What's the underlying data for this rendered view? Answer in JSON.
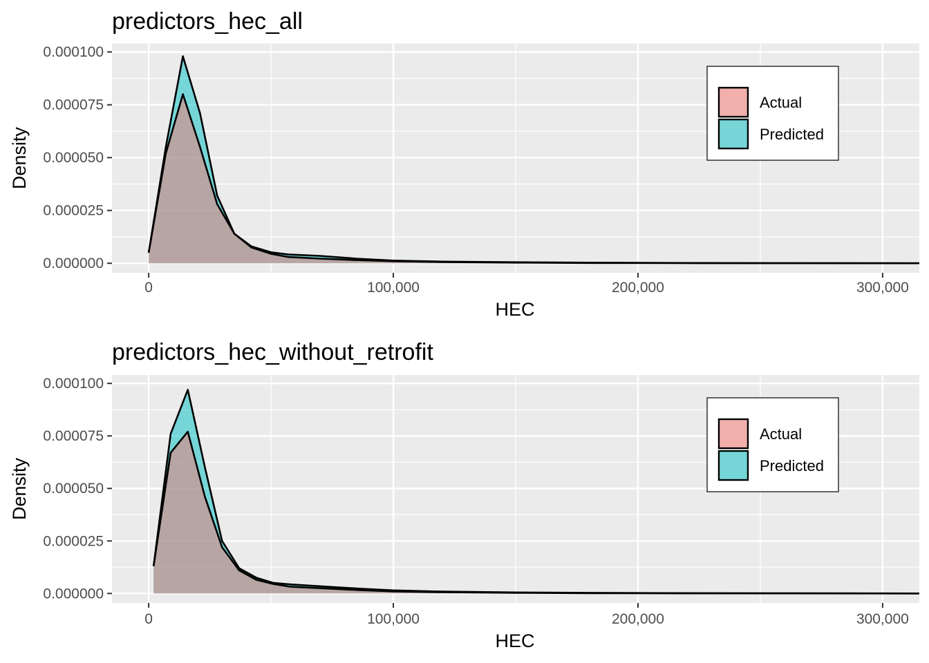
{
  "chart_data": [
    {
      "type": "area",
      "title": "predictors_hec_all",
      "xlabel": "HEC",
      "ylabel": "Density",
      "xlim": [
        -15000,
        315000
      ],
      "ylim": [
        -4.5e-06,
        0.000104
      ],
      "x_ticks": [
        0,
        100000,
        200000,
        300000
      ],
      "x_tick_labels": [
        "0",
        "100,000",
        "200,000",
        "300,000"
      ],
      "y_ticks": [
        0,
        2.5e-05,
        5e-05,
        7.5e-05,
        0.0001
      ],
      "y_tick_labels": [
        "0.000000",
        "0.000025",
        "0.000050",
        "0.000075",
        "0.000100"
      ],
      "grid": true,
      "legend": {
        "placement": "top-right",
        "items": [
          "Actual",
          "Predicted"
        ]
      },
      "series": [
        {
          "name": "Actual",
          "color": "#f8766d",
          "x": [
            0,
            7000,
            14000,
            21000,
            28000,
            35000,
            42000,
            50000,
            57000,
            70000,
            85000,
            100000,
            120000,
            150000,
            180000,
            220000,
            260000,
            300000,
            315000
          ],
          "values": [
            5e-06,
            5.2e-05,
            8e-05,
            5.5e-05,
            2.8e-05,
            1.4e-05,
            7.5e-06,
            4.5e-06,
            3e-06,
            2.2e-06,
            1.5e-06,
            1e-06,
            6e-07,
            3e-07,
            1.5e-07,
            8e-08,
            4e-08,
            2e-08,
            1e-08
          ]
        },
        {
          "name": "Predicted",
          "color": "#00bfc4",
          "x": [
            0,
            7000,
            14000,
            21000,
            28000,
            35000,
            42000,
            50000,
            57000,
            70000,
            85000,
            100000,
            120000,
            150000,
            180000,
            220000,
            260000,
            300000,
            315000
          ],
          "values": [
            5e-06,
            5.5e-05,
            9.8e-05,
            7.1e-05,
            3.2e-05,
            1.4e-05,
            8e-06,
            5.2e-06,
            4.2e-06,
            3.5e-06,
            2.2e-06,
            1.3e-06,
            8e-07,
            5e-07,
            3e-07,
            1.5e-07,
            8e-08,
            4e-08,
            2e-08
          ]
        }
      ]
    },
    {
      "type": "area",
      "title": "predictors_hec_without_retrofit",
      "xlabel": "HEC",
      "ylabel": "Density",
      "xlim": [
        -15000,
        315000
      ],
      "ylim": [
        -4.5e-06,
        0.000104
      ],
      "x_ticks": [
        0,
        100000,
        200000,
        300000
      ],
      "x_tick_labels": [
        "0",
        "100,000",
        "200,000",
        "300,000"
      ],
      "y_ticks": [
        0,
        2.5e-05,
        5e-05,
        7.5e-05,
        0.0001
      ],
      "y_tick_labels": [
        "0.000000",
        "0.000025",
        "0.000050",
        "0.000075",
        "0.000100"
      ],
      "grid": true,
      "legend": {
        "placement": "top-right",
        "items": [
          "Actual",
          "Predicted"
        ]
      },
      "series": [
        {
          "name": "Actual",
          "color": "#f8766d",
          "x": [
            2000,
            9000,
            16000,
            23000,
            30000,
            37000,
            44000,
            51000,
            58000,
            72000,
            86000,
            100000,
            120000,
            150000,
            180000,
            220000,
            260000,
            300000,
            315000
          ],
          "values": [
            1.3e-05,
            6.7e-05,
            7.7e-05,
            4.6e-05,
            2.2e-05,
            1.1e-05,
            6.5e-06,
            4.5e-06,
            3.2e-06,
            2.4e-06,
            1.6e-06,
            1e-06,
            6e-07,
            3e-07,
            1.5e-07,
            8e-08,
            4e-08,
            2e-08,
            1e-08
          ]
        },
        {
          "name": "Predicted",
          "color": "#00bfc4",
          "x": [
            2000,
            9000,
            16000,
            23000,
            30000,
            37000,
            44000,
            51000,
            58000,
            72000,
            86000,
            100000,
            120000,
            150000,
            180000,
            220000,
            260000,
            300000,
            315000
          ],
          "values": [
            1.3e-05,
            7.6e-05,
            9.7e-05,
            6e-05,
            2.5e-05,
            1.2e-05,
            7.5e-06,
            5e-06,
            4.3e-06,
            3.3e-06,
            2.3e-06,
            1.5e-06,
            9e-07,
            5e-07,
            3e-07,
            1.5e-07,
            8e-08,
            4e-08,
            2e-08
          ]
        }
      ]
    }
  ]
}
